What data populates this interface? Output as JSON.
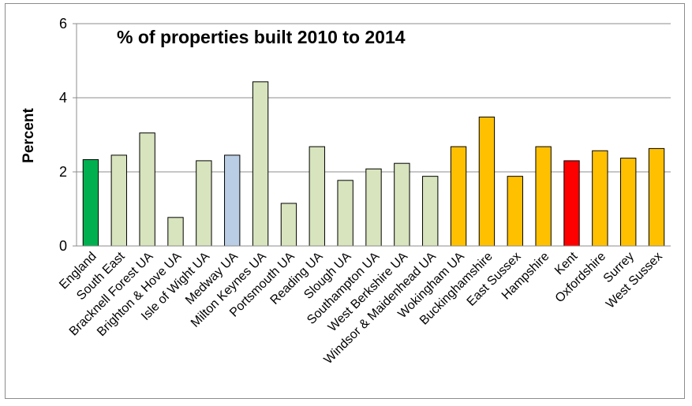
{
  "chart_data": {
    "type": "bar",
    "title": "% of properties built 2010 to 2014",
    "xlabel": "",
    "ylabel": "Percent",
    "ylim": [
      0,
      6
    ],
    "yticks": [
      "0",
      "2",
      "4",
      "6"
    ],
    "grid": true,
    "legend": "none",
    "categories": [
      "England",
      "South East",
      "Bracknell Forest UA",
      "Brighton & Hove UA",
      "Isle of Wight UA",
      "Medway UA",
      "Milton Keynes UA",
      "Portsmouth UA",
      "Reading UA",
      "Slough UA",
      "Southampton UA",
      "West Berkshire UA",
      "Windsor & Maidenhead UA",
      "Wokingham UA",
      "Buckinghamshire",
      "East Sussex",
      "Hampshire",
      "Kent",
      "Oxfordshire",
      "Surrey",
      "West Sussex"
    ],
    "values": [
      2.33,
      2.45,
      3.05,
      0.77,
      2.3,
      2.45,
      4.43,
      1.15,
      2.68,
      1.77,
      2.08,
      2.23,
      1.88,
      2.68,
      3.48,
      1.88,
      2.68,
      2.3,
      2.57,
      2.37,
      2.63
    ],
    "colors": [
      "#00b050",
      "#d7e4bd",
      "#d7e4bd",
      "#d7e4bd",
      "#d7e4bd",
      "#b9cde5",
      "#d7e4bd",
      "#d7e4bd",
      "#d7e4bd",
      "#d7e4bd",
      "#d7e4bd",
      "#d7e4bd",
      "#d7e4bd",
      "#ffc000",
      "#ffc000",
      "#ffc000",
      "#ffc000",
      "#ff0000",
      "#ffc000",
      "#ffc000",
      "#ffc000"
    ]
  }
}
